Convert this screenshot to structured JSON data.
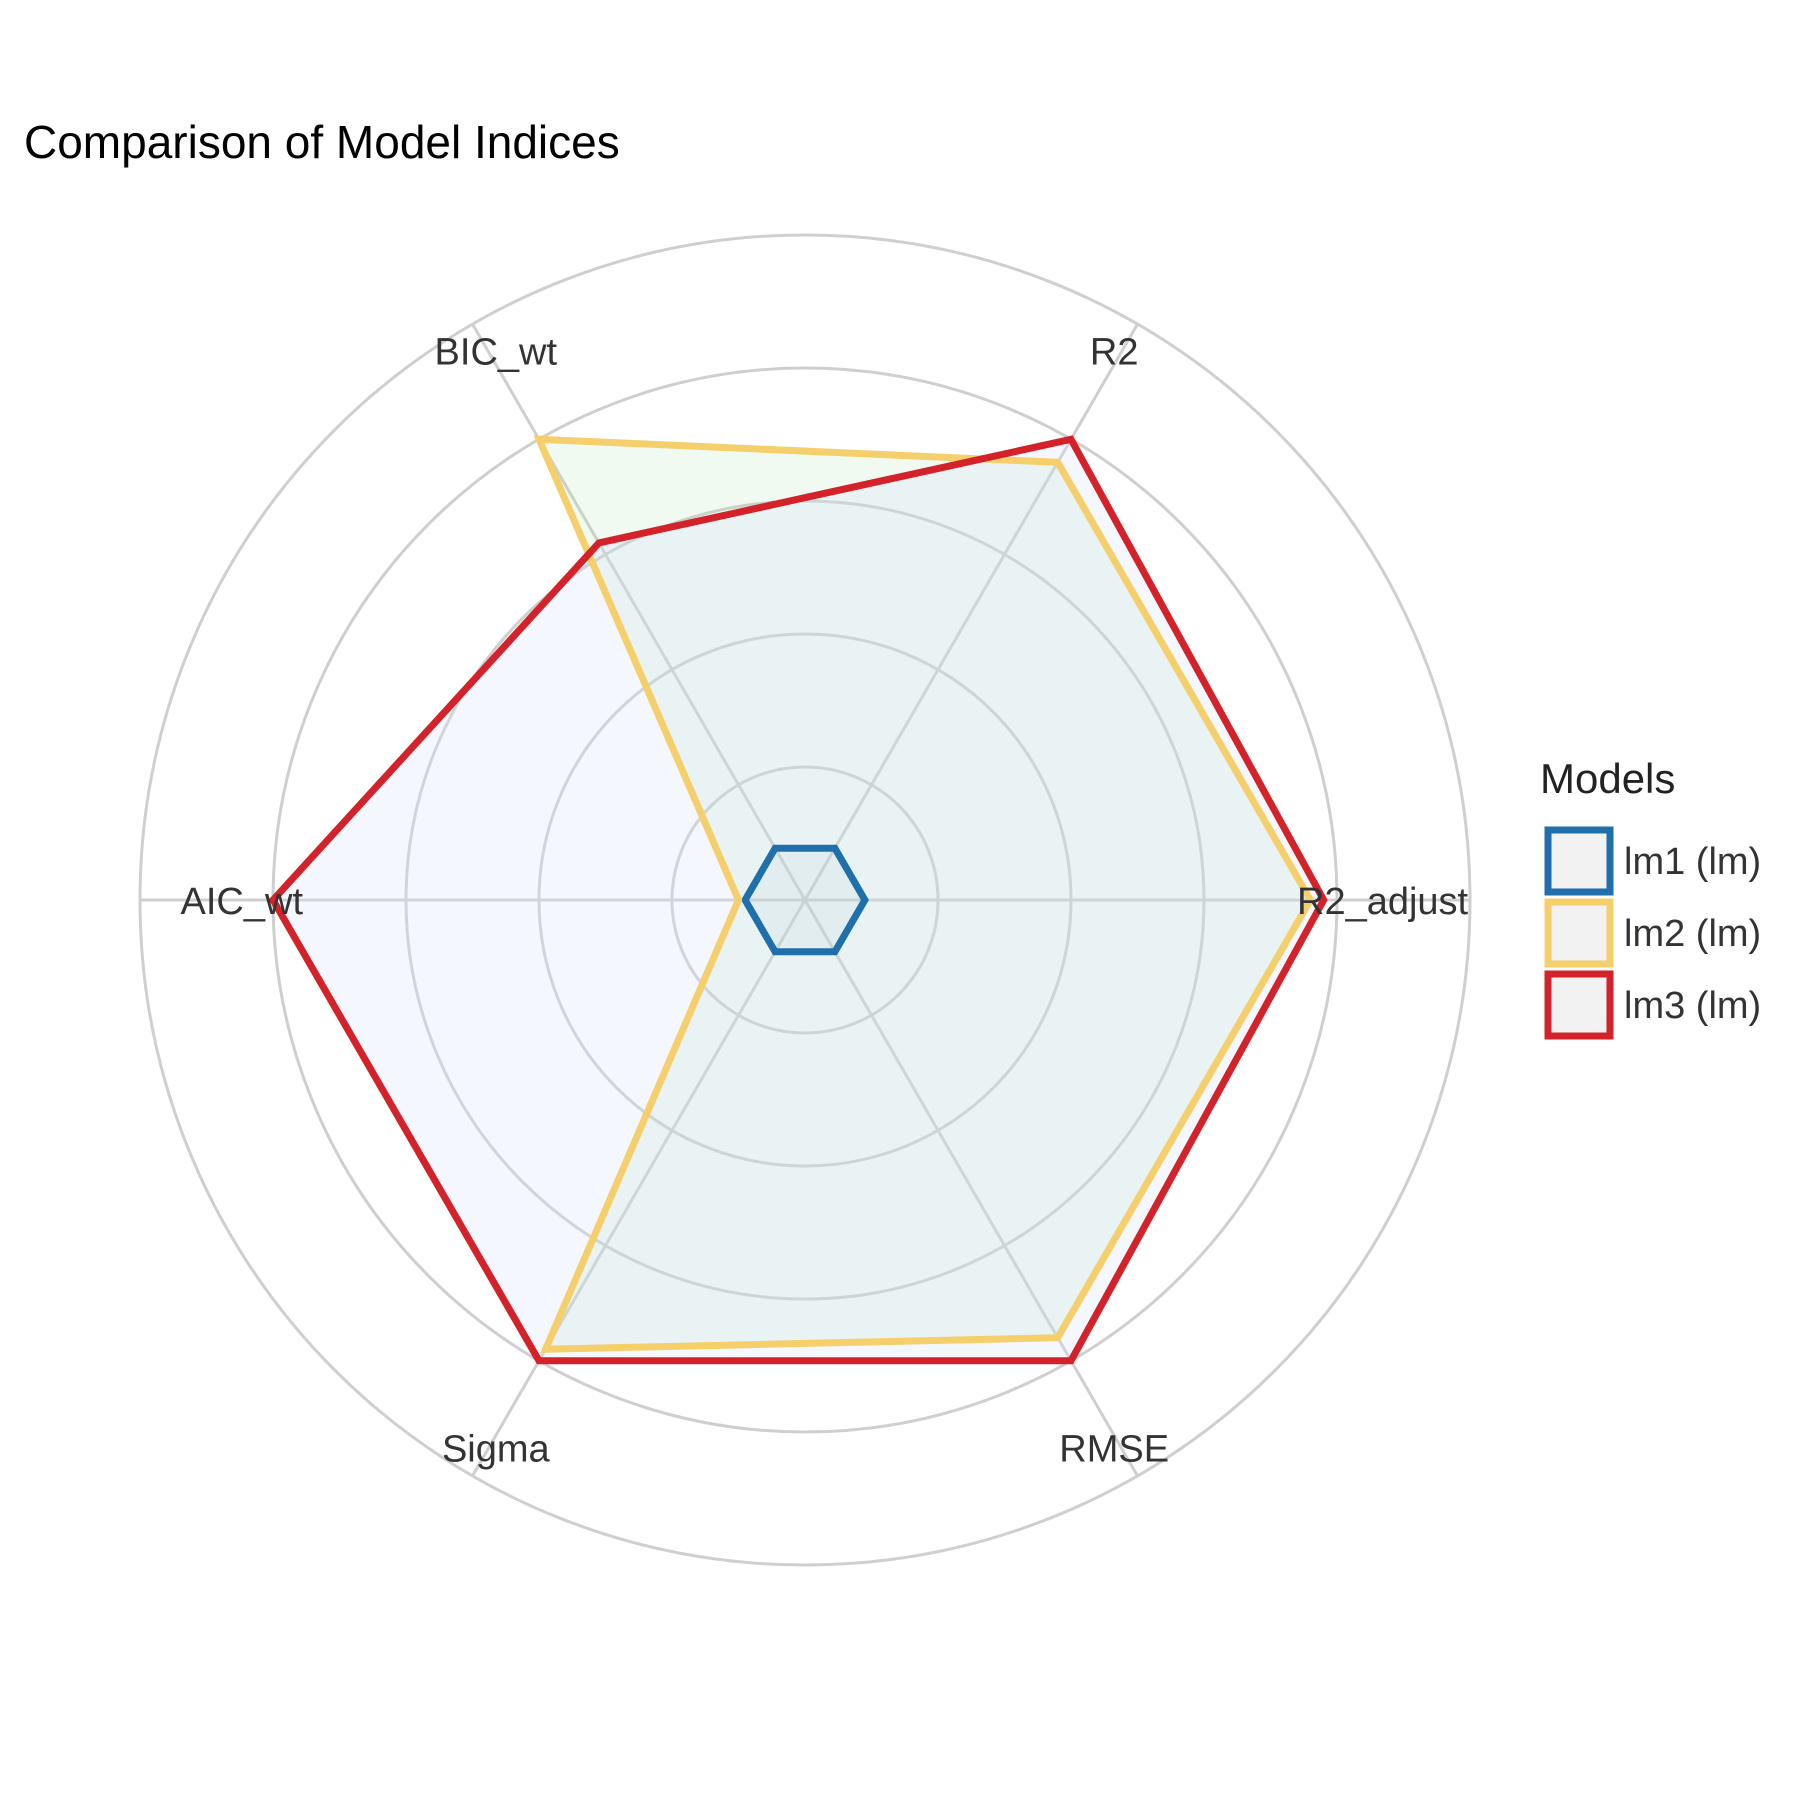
{
  "chart_data": {
    "type": "radar",
    "title": "Comparison of Model Indices",
    "axes": [
      "R2",
      "BIC_wt",
      "AIC_wt",
      "Sigma",
      "RMSE",
      "R2_adjusted"
    ],
    "axes_display": [
      "R2",
      "BIC_wt",
      "AIC_wt",
      "Sigma",
      "RMSE",
      "R2_adjust"
    ],
    "rlim": [
      0,
      1
    ],
    "gridlines": [
      0.2,
      0.4,
      0.6,
      0.8,
      1.0
    ],
    "grid": true,
    "legend": {
      "title": "Models",
      "placement": "right"
    },
    "series": [
      {
        "name": "lm1 (lm)",
        "color": "#1f6faa",
        "values": [
          0.09,
          0.09,
          0.09,
          0.09,
          0.09,
          0.09
        ]
      },
      {
        "name": "lm2 (lm)",
        "color": "#f5cf6b",
        "values": [
          0.76,
          0.8,
          0.1,
          0.78,
          0.76,
          0.76
        ]
      },
      {
        "name": "lm3 (lm)",
        "color": "#d3222a",
        "values": [
          0.8,
          0.62,
          0.8,
          0.8,
          0.8,
          0.78
        ]
      }
    ]
  }
}
